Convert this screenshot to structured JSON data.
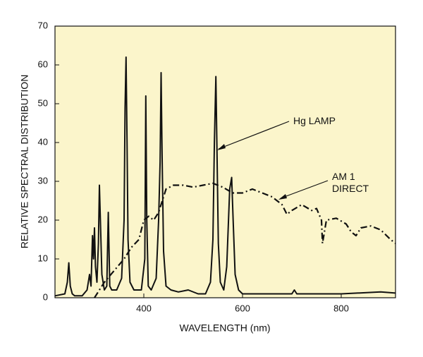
{
  "chart_data": {
    "type": "line",
    "x_label": "WAVELENGTH (nm)",
    "y_label": "RELATIVE SPECTRAL DISTRIBUTION",
    "xlim": [
      220,
      910
    ],
    "ylim": [
      0,
      70
    ],
    "xticks": [
      400,
      600,
      800
    ],
    "yticks": [
      0,
      10,
      20,
      30,
      40,
      50,
      60,
      70
    ],
    "background": "#fbf5cb",
    "series": [
      {
        "name": "Hg LAMP",
        "color": "#111111",
        "dash": "solid",
        "x": [
          220,
          240,
          245,
          248,
          251,
          255,
          260,
          275,
          285,
          290,
          293,
          296,
          298,
          300,
          302,
          305,
          308,
          310,
          312,
          315,
          320,
          325,
          328,
          331,
          335,
          345,
          355,
          360,
          362,
          364,
          366,
          368,
          372,
          380,
          395,
          402,
          404,
          406,
          409,
          415,
          425,
          430,
          433,
          435,
          437,
          440,
          445,
          455,
          470,
          490,
          510,
          525,
          535,
          540,
          543,
          546,
          548,
          551,
          555,
          562,
          568,
          574,
          578,
          581,
          585,
          592,
          600,
          700,
          705,
          710,
          800,
          880,
          910
        ],
        "values": [
          0.5,
          1,
          4,
          9,
          3,
          1,
          0.5,
          0.5,
          2,
          6,
          3,
          16,
          10,
          18,
          8,
          4,
          14,
          29,
          20,
          6,
          2,
          3,
          22,
          3,
          2,
          2,
          5,
          20,
          49,
          62,
          40,
          15,
          4,
          2,
          2,
          10,
          52,
          20,
          3,
          2,
          5,
          20,
          35,
          58,
          37,
          12,
          3,
          2,
          1.5,
          2,
          1,
          1,
          4,
          15,
          40,
          57,
          40,
          14,
          4,
          2,
          8,
          28,
          31,
          20,
          6,
          2,
          1,
          1,
          2,
          1,
          1,
          1.5,
          1.2
        ]
      },
      {
        "name": "AM 1 DIRECT",
        "color": "#111111",
        "dash": "dash-dot",
        "x": [
          300,
          320,
          340,
          360,
          375,
          390,
          400,
          410,
          420,
          430,
          445,
          460,
          480,
          500,
          520,
          540,
          560,
          580,
          600,
          620,
          640,
          660,
          680,
          690,
          700,
          720,
          740,
          750,
          760,
          762,
          770,
          790,
          810,
          820,
          830,
          840,
          860,
          880,
          900,
          910
        ],
        "values": [
          0,
          4,
          7,
          10,
          13,
          15,
          20,
          21,
          20,
          22,
          28,
          29,
          29,
          28.5,
          29,
          29.5,
          28.5,
          27,
          27,
          28,
          27,
          26,
          24,
          21.5,
          22.5,
          24,
          22.5,
          23,
          20,
          14,
          20,
          20.5,
          19,
          17,
          16,
          18,
          18.5,
          17.5,
          15,
          14
        ]
      }
    ]
  }
}
